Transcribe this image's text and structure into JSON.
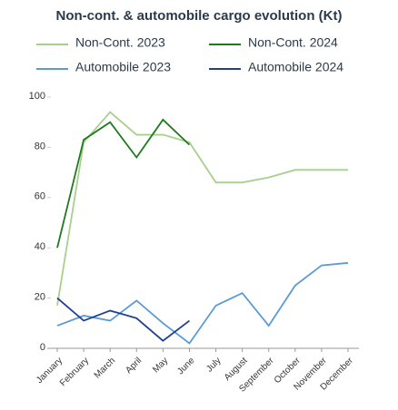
{
  "chart_data": {
    "type": "line",
    "title": "Non-cont. & automobile cargo evolution (Kt)",
    "categories": [
      "January",
      "February",
      "March",
      "April",
      "May",
      "June",
      "July",
      "August",
      "September",
      "October",
      "November",
      "December"
    ],
    "series": [
      {
        "name": "Non-Cont. 2023",
        "color": "#a8d08d",
        "values": [
          17,
          82,
          94,
          85,
          85,
          82,
          66,
          66,
          68,
          71,
          71,
          71
        ]
      },
      {
        "name": "Non-Cont. 2024",
        "color": "#1e7b1e",
        "values": [
          40,
          83,
          90,
          76,
          91,
          81,
          null,
          null,
          null,
          null,
          null,
          null
        ]
      },
      {
        "name": "Automobile 2023",
        "color": "#5b9bd5",
        "values": [
          9,
          13,
          11,
          19,
          10,
          2,
          17,
          22,
          9,
          25,
          33,
          34
        ]
      },
      {
        "name": "Automobile 2024",
        "color": "#1f3f8f",
        "values": [
          20,
          11,
          15,
          12,
          3,
          11,
          null,
          null,
          null,
          null,
          null,
          null
        ]
      }
    ],
    "ylim": [
      0,
      100
    ],
    "yticks": [
      0,
      20,
      40,
      60,
      80,
      100
    ]
  }
}
